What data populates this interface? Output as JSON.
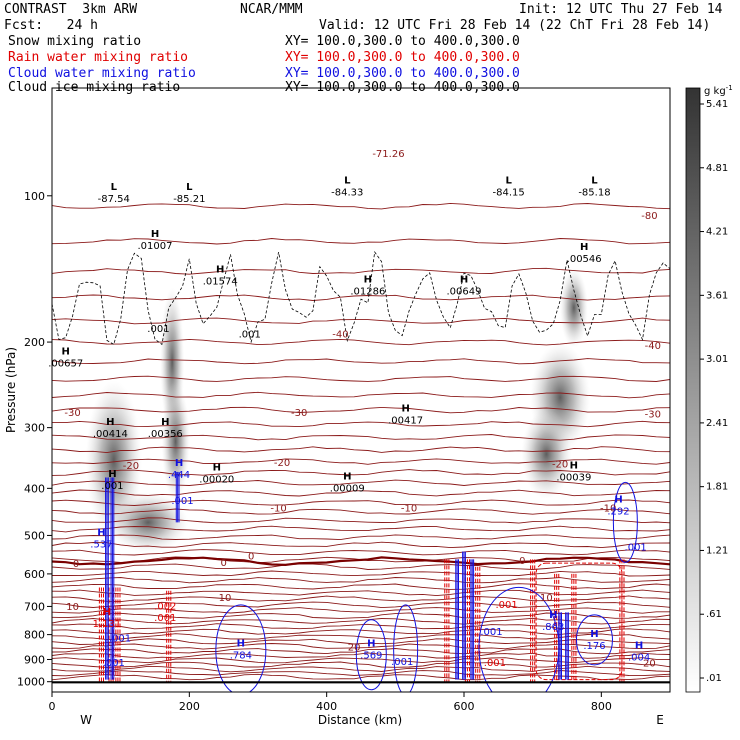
{
  "header": {
    "top_left_1": "CONTRAST  3km ARW",
    "top_center": "NCAR/MMM",
    "top_right": "Init: 12 UTC Thu 27 Feb 14",
    "fcst": "Fcst:   24 h",
    "valid": "Valid: 12 UTC Fri 28 Feb 14 (22 ChT Fri 28 Feb 14)",
    "fields": [
      {
        "label": "Snow mixing ratio",
        "xy": "XY= 100.0,300.0 to 400.0,300.0",
        "color": "#000000"
      },
      {
        "label": "Rain water mixing ratio",
        "xy": "XY= 100.0,300.0 to 400.0,300.0",
        "color": "#e00000"
      },
      {
        "label": "Cloud water mixing ratio",
        "xy": "XY= 100.0,300.0 to 400.0,300.0",
        "color": "#1010e0"
      },
      {
        "label": "Cloud ice mixing ratio",
        "xy": "XY= 100.0,300.0 to 400.0,300.0",
        "color": "#000000"
      }
    ]
  },
  "chart_data": {
    "type": "cross-section",
    "xlabel": "Distance (km)",
    "ylabel": "Pressure (hPa)",
    "xlim": [
      0,
      900
    ],
    "ylim": [
      1050,
      60
    ],
    "y_scale": "log",
    "x_ticks": [
      0,
      200,
      400,
      600,
      800
    ],
    "y_ticks": [
      100,
      200,
      300,
      400,
      500,
      600,
      700,
      800,
      900,
      1000
    ],
    "end_labels": {
      "left": "W",
      "right": "E"
    },
    "colorbar": {
      "unit": "g kg",
      "unit_exp": "-1",
      "levels": [
        ".01",
        ".61",
        "1.21",
        "1.81",
        "2.41",
        "3.01",
        "3.61",
        "4.21",
        "4.81",
        "5.41"
      ]
    },
    "temperature_contours": [
      {
        "label": "-80",
        "x": 870,
        "p": 110
      },
      {
        "label": "-71.26",
        "x": 490,
        "p": 82
      },
      {
        "label": "-40",
        "x": 420,
        "p": 193
      },
      {
        "label": "-40",
        "x": 875,
        "p": 204
      },
      {
        "label": "-30",
        "x": 360,
        "p": 280
      },
      {
        "label": "-30",
        "x": 875,
        "p": 282
      },
      {
        "label": "-30",
        "x": 30,
        "p": 280
      },
      {
        "label": "-20",
        "x": 115,
        "p": 360
      },
      {
        "label": "-20",
        "x": 335,
        "p": 355
      },
      {
        "label": "-20",
        "x": 740,
        "p": 357
      },
      {
        "label": "-10",
        "x": 330,
        "p": 440
      },
      {
        "label": "-10",
        "x": 520,
        "p": 440
      },
      {
        "label": "-10",
        "x": 810,
        "p": 440
      },
      {
        "label": "0",
        "x": 35,
        "p": 572
      },
      {
        "label": "0",
        "x": 250,
        "p": 570
      },
      {
        "label": "0",
        "x": 290,
        "p": 552
      },
      {
        "label": "0",
        "x": 685,
        "p": 565
      },
      {
        "label": "10",
        "x": 252,
        "p": 672
      },
      {
        "label": "10",
        "x": 720,
        "p": 672
      },
      {
        "label": "10",
        "x": 30,
        "p": 702
      },
      {
        "label": "20",
        "x": 440,
        "p": 850
      },
      {
        "label": "20",
        "x": 870,
        "p": 918
      }
    ],
    "extrema": [
      {
        "type": "L",
        "label": "-87.54",
        "x": 90,
        "p": 100,
        "color": "#000000"
      },
      {
        "type": "L",
        "label": "-85.21",
        "x": 200,
        "p": 100,
        "color": "#000000"
      },
      {
        "type": "L",
        "label": "-84.33",
        "x": 430,
        "p": 97,
        "color": "#000000"
      },
      {
        "type": "L",
        "label": "-84.15",
        "x": 665,
        "p": 97,
        "color": "#000000"
      },
      {
        "type": "L",
        "label": "-85.18",
        "x": 790,
        "p": 97,
        "color": "#000000"
      },
      {
        "type": "H",
        "label": ".01007",
        "x": 150,
        "p": 125,
        "color": "#000000"
      },
      {
        "type": "H",
        "label": ".01574",
        "x": 245,
        "p": 148,
        "color": "#000000"
      },
      {
        "type": "H",
        "label": ".01286",
        "x": 460,
        "p": 155,
        "color": "#000000"
      },
      {
        "type": "H",
        "label": ".00649",
        "x": 600,
        "p": 155,
        "color": "#000000"
      },
      {
        "type": "H",
        "label": ".00546",
        "x": 775,
        "p": 133,
        "color": "#000000"
      },
      {
        "type": "H",
        "label": ".00657",
        "x": 20,
        "p": 218,
        "color": "#000000"
      },
      {
        "type": "H",
        "label": ".00414",
        "x": 85,
        "p": 305,
        "color": "#000000"
      },
      {
        "type": "H",
        "label": ".00356",
        "x": 165,
        "p": 305,
        "color": "#000000"
      },
      {
        "type": "H",
        "label": ".00417",
        "x": 515,
        "p": 286,
        "color": "#000000"
      },
      {
        "type": "H",
        "label": ".00020",
        "x": 240,
        "p": 378,
        "color": "#000000"
      },
      {
        "type": "H",
        "label": ".00009",
        "x": 430,
        "p": 395,
        "color": "#000000"
      },
      {
        "type": "H",
        "label": ".00039",
        "x": 760,
        "p": 375,
        "color": "#000000"
      },
      {
        "type": "H",
        "label": ".001",
        "x": 88,
        "p": 390,
        "color": "#000000"
      },
      {
        "type": "H",
        "label": ".444",
        "x": 185,
        "p": 370,
        "color": "#1010e0"
      },
      {
        "type": "H",
        "label": ".292",
        "x": 825,
        "p": 440,
        "color": "#1010e0"
      },
      {
        "type": "H",
        "label": ".537",
        "x": 72,
        "p": 515,
        "color": "#1010e0"
      },
      {
        "type": "H",
        "label": "1.131",
        "x": 80,
        "p": 750,
        "color": "#e00000"
      },
      {
        "type": "H",
        "label": ".784",
        "x": 275,
        "p": 870,
        "color": "#1010e0"
      },
      {
        "type": "H",
        "label": ".569",
        "x": 465,
        "p": 870,
        "color": "#1010e0"
      },
      {
        "type": "H",
        "label": ".863",
        "x": 730,
        "p": 760,
        "color": "#1010e0"
      },
      {
        "type": "H",
        "label": ".176",
        "x": 790,
        "p": 832,
        "color": "#1010e0"
      },
      {
        "type": "H",
        "label": ".004",
        "x": 855,
        "p": 880,
        "color": "#1010e0"
      }
    ],
    "small_labels": [
      {
        "label": ".001",
        "x": 155,
        "p": 188,
        "color": "#000000"
      },
      {
        "label": ".001",
        "x": 288,
        "p": 193,
        "color": "#000000"
      },
      {
        "label": ".001",
        "x": 190,
        "p": 425,
        "color": "#1010e0"
      },
      {
        "label": ".001",
        "x": 850,
        "p": 530,
        "color": "#1010e0"
      },
      {
        "label": ".002",
        "x": 165,
        "p": 700,
        "color": "#e00000"
      },
      {
        "label": ".001",
        "x": 165,
        "p": 740,
        "color": "#e00000"
      },
      {
        "label": ".001",
        "x": 662,
        "p": 695,
        "color": "#e00000"
      },
      {
        "label": ".001",
        "x": 99,
        "p": 815,
        "color": "#1010e0"
      },
      {
        "label": ".001",
        "x": 90,
        "p": 915,
        "color": "#1010e0"
      },
      {
        "label": ".001",
        "x": 510,
        "p": 910,
        "color": "#1010e0"
      },
      {
        "label": ".001",
        "x": 640,
        "p": 790,
        "color": "#1010e0"
      },
      {
        "label": ".001",
        "x": 645,
        "p": 915,
        "color": "#e00000"
      }
    ],
    "surface_pressure_hPa": 1003
  }
}
